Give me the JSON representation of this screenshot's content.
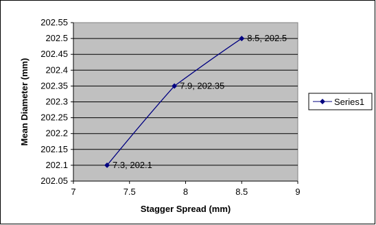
{
  "chart_data": {
    "type": "scatter",
    "xlabel": "Stagger Spread (mm)",
    "ylabel": "Mean Diameter (mm)",
    "xlim": [
      7,
      9
    ],
    "ylim": [
      202.05,
      202.55
    ],
    "x_ticks": [
      "7",
      "7.5",
      "8",
      "8.5",
      "9"
    ],
    "y_ticks": [
      "202.05",
      "202.1",
      "202.15",
      "202.2",
      "202.25",
      "202.3",
      "202.35",
      "202.4",
      "202.45",
      "202.5",
      "202.55"
    ],
    "grid": true,
    "plot_background": "#c0c0c0",
    "legend_position": "right",
    "series": [
      {
        "name": "Series1",
        "color": "#000080",
        "marker": "diamond",
        "points": [
          {
            "x": 7.3,
            "y": 202.1,
            "label": "7.3, 202.1"
          },
          {
            "x": 7.9,
            "y": 202.35,
            "label": "7.9, 202.35"
          },
          {
            "x": 8.5,
            "y": 202.5,
            "label": "8.5, 202.5"
          }
        ]
      }
    ]
  }
}
